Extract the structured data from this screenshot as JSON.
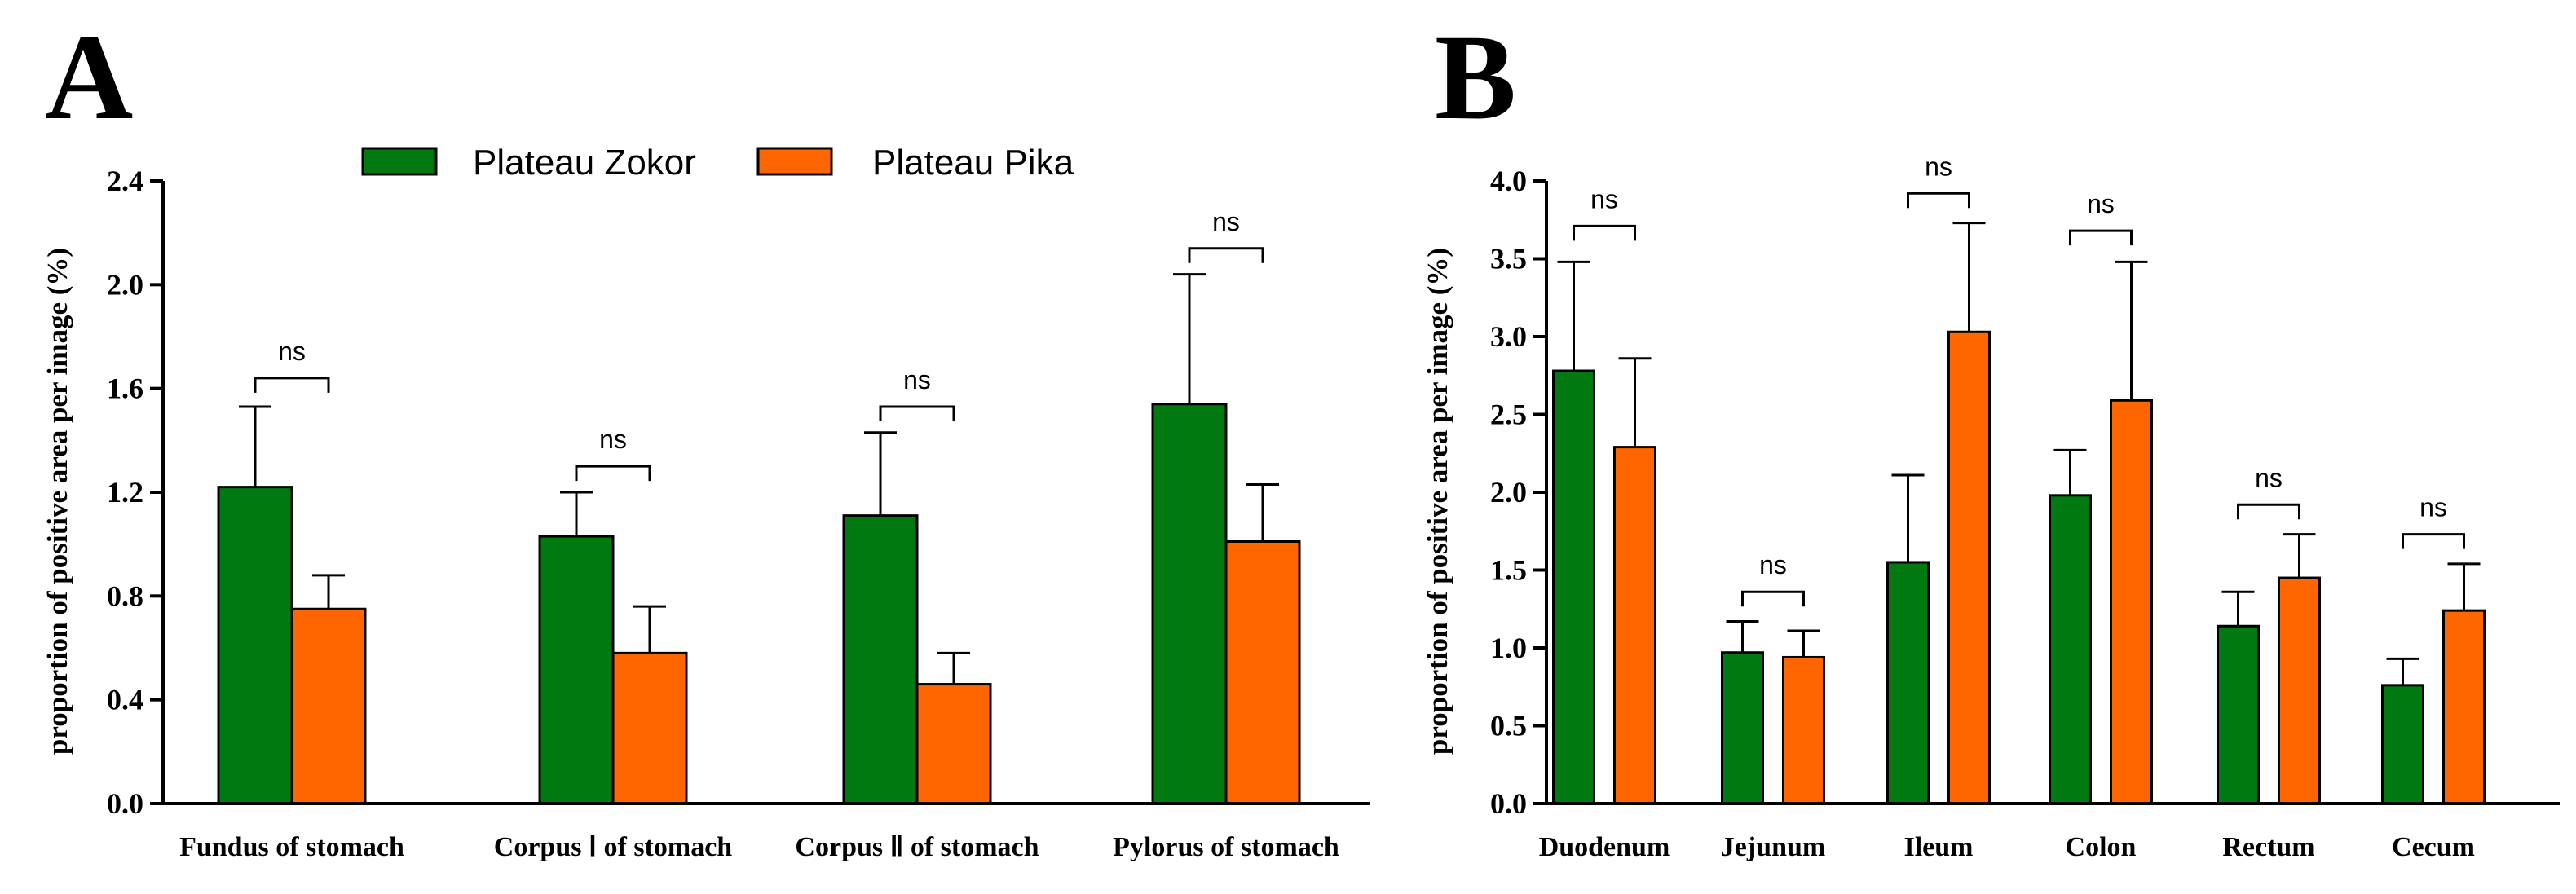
{
  "legend": {
    "items": [
      {
        "label": "Plateau Zokor",
        "color": "#007a10"
      },
      {
        "label": "Plateau Pika",
        "color": "#ff6600"
      }
    ]
  },
  "chart_data": [
    {
      "type": "bar",
      "panel_label": "A",
      "categories": [
        "Fundus of stomach",
        "Corpus Ⅰ of stomach",
        "Corpus Ⅱ of stomach",
        "Pylorus of stomach"
      ],
      "series": [
        {
          "name": "Plateau Zokor",
          "values": [
            1.22,
            1.03,
            1.11,
            1.54
          ],
          "error_upper": [
            1.53,
            1.2,
            1.43,
            2.04
          ]
        },
        {
          "name": "Plateau Pika",
          "values": [
            0.75,
            0.58,
            0.46,
            1.01
          ],
          "error_upper": [
            0.88,
            0.76,
            0.58,
            1.23
          ]
        }
      ],
      "significance": [
        {
          "label": "ns",
          "y": 1.64
        },
        {
          "label": "ns",
          "y": 1.3
        },
        {
          "label": "ns",
          "y": 1.53
        },
        {
          "label": "ns",
          "y": 2.14
        }
      ],
      "ylabel": "proportion of positive area per image (%)",
      "xlabel": "",
      "ylim": [
        0,
        2.4
      ],
      "yticks": [
        "0.0",
        "0.4",
        "0.8",
        "1.2",
        "1.6",
        "2.0",
        "2.4"
      ],
      "yticks_values": [
        0,
        0.4,
        0.8,
        1.2,
        1.6,
        2.0,
        2.4
      ]
    },
    {
      "type": "bar",
      "panel_label": "B",
      "categories": [
        "Duodenum",
        "Jejunum",
        "Ileum",
        "Colon",
        "Rectum",
        "Cecum"
      ],
      "series": [
        {
          "name": "Plateau Zokor",
          "values": [
            2.78,
            0.97,
            1.55,
            1.98,
            1.14,
            0.76
          ],
          "error_upper": [
            3.48,
            1.17,
            2.11,
            2.27,
            1.36,
            0.93
          ]
        },
        {
          "name": "Plateau Pika",
          "values": [
            2.29,
            0.94,
            3.03,
            2.59,
            1.45,
            1.24
          ],
          "error_upper": [
            2.86,
            1.11,
            3.73,
            3.48,
            1.73,
            1.54
          ]
        }
      ],
      "significance": [
        {
          "label": "ns",
          "y": 3.71
        },
        {
          "label": "ns",
          "y": 1.36
        },
        {
          "label": "ns",
          "y": 3.92
        },
        {
          "label": "ns",
          "y": 3.68
        },
        {
          "label": "ns",
          "y": 1.92
        },
        {
          "label": "ns",
          "y": 1.73
        }
      ],
      "ylabel": "proportion of positive area per image (%)",
      "xlabel": "",
      "ylim": [
        0,
        4.0
      ],
      "yticks": [
        "0.0",
        "0.5",
        "1.0",
        "1.5",
        "2.0",
        "2.5",
        "3.0",
        "3.5",
        "4.0"
      ],
      "yticks_values": [
        0,
        0.5,
        1.0,
        1.5,
        2.0,
        2.5,
        3.0,
        3.5,
        4.0
      ]
    }
  ]
}
